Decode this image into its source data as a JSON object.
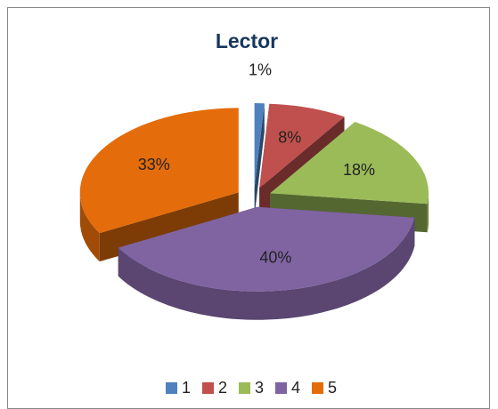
{
  "chart_data": {
    "type": "pie",
    "title": "Lector",
    "categories": [
      "1",
      "2",
      "3",
      "4",
      "5"
    ],
    "values": [
      1,
      8,
      18,
      40,
      33
    ],
    "value_labels": [
      "1%",
      "8%",
      "18%",
      "40%",
      "33%"
    ],
    "colors": [
      "#4f81bd",
      "#c0504d",
      "#9bbb59",
      "#8064a2",
      "#e46c0a"
    ],
    "legend": "bottom"
  }
}
